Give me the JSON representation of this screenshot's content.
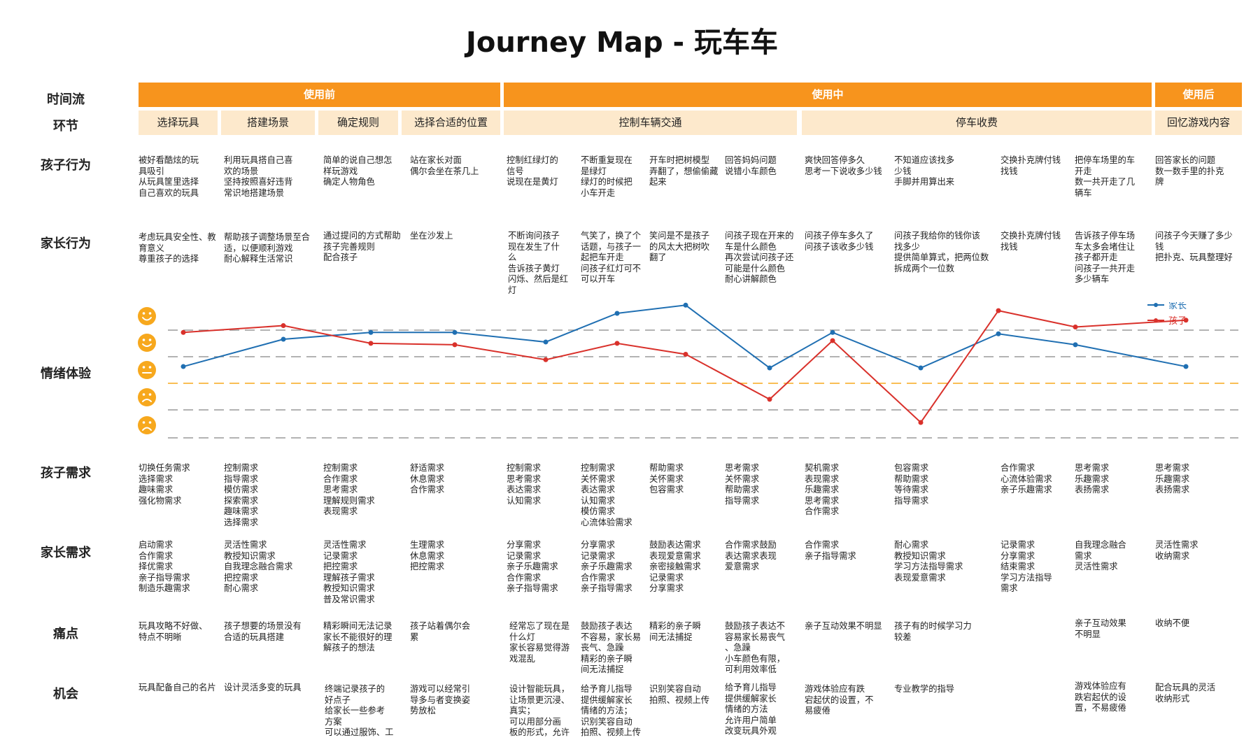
{
  "title": "Journey Map - 玩车车",
  "row_labels": {
    "timeline": "时间流",
    "stage": "环节",
    "child_action": "孩子行为",
    "parent_action": "家长行为",
    "emotion": "情绪体验",
    "child_needs": "孩子需求",
    "parent_needs": "家长需求",
    "pain_points": "痛点",
    "opportunities": "机会"
  },
  "phases": [
    "使用前",
    "使用中",
    "使用后"
  ],
  "stages": [
    "选择玩具",
    "搭建场景",
    "确定规则",
    "选择合适的位置",
    "控制车辆交通",
    "停车收费",
    "回忆游戏内容"
  ],
  "child_actions": [
    "被好看酷炫的玩\n具吸引\n从玩具筐里选择\n自己喜欢的玩具",
    "利用玩具搭自己喜\n欢的场景\n坚持按照喜好违背\n常识地搭建场景",
    "简单的说自己想怎\n样玩游戏\n确定人物角色",
    "站在家长对面\n偶尔会坐在茶几上",
    "控制红绿灯的\n信号\n说现在是黄灯",
    "不断重复现在\n是绿灯\n绿灯的时候把\n小车开走",
    "开车时把树模型\n弄翻了，想偷偷藏\n起来",
    "回答妈妈问题\n说错小车颜色",
    "爽快回答停多久\n思考一下说收多少钱",
    "不知道应该找多\n少钱\n手脚并用算出来",
    "交换扑克牌付钱\n找钱",
    "把停车场里的车\n开走\n数一共开走了几\n辆车",
    "回答家长的问题\n数一数手里的扑克\n牌"
  ],
  "parent_actions": [
    "考虑玩具安全性、教\n育意义\n尊重孩子的选择",
    "帮助孩子调整场景至合\n适，以便顺利游戏\n耐心解释生活常识",
    "通过提问的方式帮助\n孩子完善规则\n配合孩子",
    "坐在沙发上",
    "不断询问孩子\n现在发生了什\n么\n告诉孩子黄灯\n闪烁、然后是红\n灯",
    "气笑了，换了个\n话题，与孩子一\n起把车开走\n问孩子红灯可不\n可以开车",
    "笑问是不是孩子\n的风太大把树吹\n翻了",
    "问孩子现在开来的\n车是什么颜色\n再次尝试问孩子还\n可能是什么颜色\n耐心讲解颜色",
    "问孩子停车多久了\n问孩子该收多少钱",
    "问孩子我给你的钱你该\n找多少\n提供简单算式，把两位数\n拆成两个一位数",
    "交换扑克牌付钱\n找钱",
    "告诉孩子停车场\n车太多会堵住让\n孩子都开走\n问孩子一共开走\n多少辆车",
    "问孩子今天赚了多少\n钱\n把扑克、玩具整理好"
  ],
  "emotion_legend": [
    "家长",
    "孩子"
  ],
  "chart_data": {
    "type": "line",
    "y_levels": 5,
    "series": [
      {
        "name": "家长",
        "color": "#1f6fb2",
        "values": [
          2.05,
          3.05,
          3.3,
          3.3,
          2.95,
          4.0,
          4.3,
          2.0,
          3.3,
          2.0,
          3.25,
          2.85,
          2.05
        ]
      },
      {
        "name": "孩子",
        "color": "#d9312b",
        "values": [
          3.3,
          3.55,
          2.9,
          2.85,
          2.3,
          2.9,
          2.5,
          0.85,
          3.0,
          0.0,
          4.1,
          3.5,
          3.75
        ]
      }
    ]
  },
  "child_needs": [
    "切换任务需求\n选择需求\n趣味需求\n强化物需求",
    "控制需求\n指导需求\n模仿需求\n探索需求\n趣味需求\n选择需求",
    "控制需求\n合作需求\n思考需求\n理解规则需求\n表现需求",
    "舒适需求\n休息需求\n合作需求",
    "控制需求\n思考需求\n表达需求\n认知需求",
    "控制需求\n关怀需求\n表达需求\n认知需求\n模仿需求\n心流体验需求",
    "帮助需求\n关怀需求\n包容需求",
    "思考需求\n关怀需求\n帮助需求\n指导需求",
    "契机需求\n表现需求\n乐趣需求\n思考需求\n合作需求",
    "包容需求\n帮助需求\n等待需求\n指导需求",
    "合作需求\n心流体验需求\n亲子乐趣需求",
    "思考需求\n乐趣需求\n表扬需求",
    "思考需求\n乐趣需求\n表扬需求"
  ],
  "parent_needs": [
    "启动需求\n合作需求\n择优需求\n亲子指导需求\n制造乐趣需求",
    "灵活性需求\n教授知识需求\n自我理念融合需求\n把控需求\n耐心需求",
    "灵活性需求\n记录需求\n把控需求\n理解孩子需求\n教授知识需求\n普及常识需求",
    "生理需求\n休息需求\n把控需求",
    "分享需求\n记录需求\n亲子乐趣需求\n合作需求\n亲子指导需求",
    "分享需求\n记录需求\n亲子乐趣需求\n合作需求\n亲子指导需求",
    "鼓励表达需求\n表现爱意需求\n亲密接触需求\n记录需求\n分享需求",
    "合作需求鼓励\n表达需求表现\n爱意需求",
    "合作需求\n亲子指导需求",
    "耐心需求\n教授知识需求\n学习方法指导需求\n表现爱意需求",
    "记录需求\n分享需求\n结束需求\n学习方法指导\n需求",
    "自我理念融合\n需求\n灵活性需求",
    "灵活性需求\n收纳需求"
  ],
  "pain_points": [
    "玩具攻略不好做、\n特点不明晰",
    "孩子想要的场景没有\n合适的玩具搭建",
    "精彩瞬间无法记录\n家长不能很好的理\n解孩子的想法",
    "孩子站着偶尔会\n累",
    "经常忘了现在是\n什么灯\n家长容易觉得游\n戏混乱",
    "鼓励孩子表达\n不容易，家长易\n丧气、急躁\n精彩的亲子瞬\n间无法捕捉",
    "精彩的亲子瞬\n间无法捕捉",
    "鼓励孩子表达不\n容易家长易丧气\n、急躁\n小车颜色有限，\n可利用效率低",
    "亲子互动效果不明显",
    "孩子有的时候学习力\n较差",
    "",
    "亲子互动效果\n不明显",
    "收纳不便"
  ],
  "opportunities": [
    "玩具配备自己的名片",
    "设计灵活多变的玩具",
    "终端记录孩子的\n好点子\n给家长一些参考\n方案\n可以通过服饰、工",
    "游戏可以经常引\n导多与者变换姿\n势放松",
    "设计智能玩具，\n让场景更沉浸、\n真实；\n可以用部分画\n板的形式，允许",
    "给予育儿指导\n提供缓解家长\n情绪的方法；\n识别笑容自动\n拍照、视频上传",
    "识别笑容自动\n拍照、视频上传",
    "给予育儿指导\n提供缓解家长\n情绪的方法\n允许用户简单\n改变玩具外观",
    "游戏体验应有跌\n宕起伏的设置，不\n易疲倦",
    "专业教学的指导",
    "",
    "游戏体验应有\n跌宕起伏的设\n置，不易疲倦",
    "配合玩具的灵活\n收纳形式"
  ]
}
